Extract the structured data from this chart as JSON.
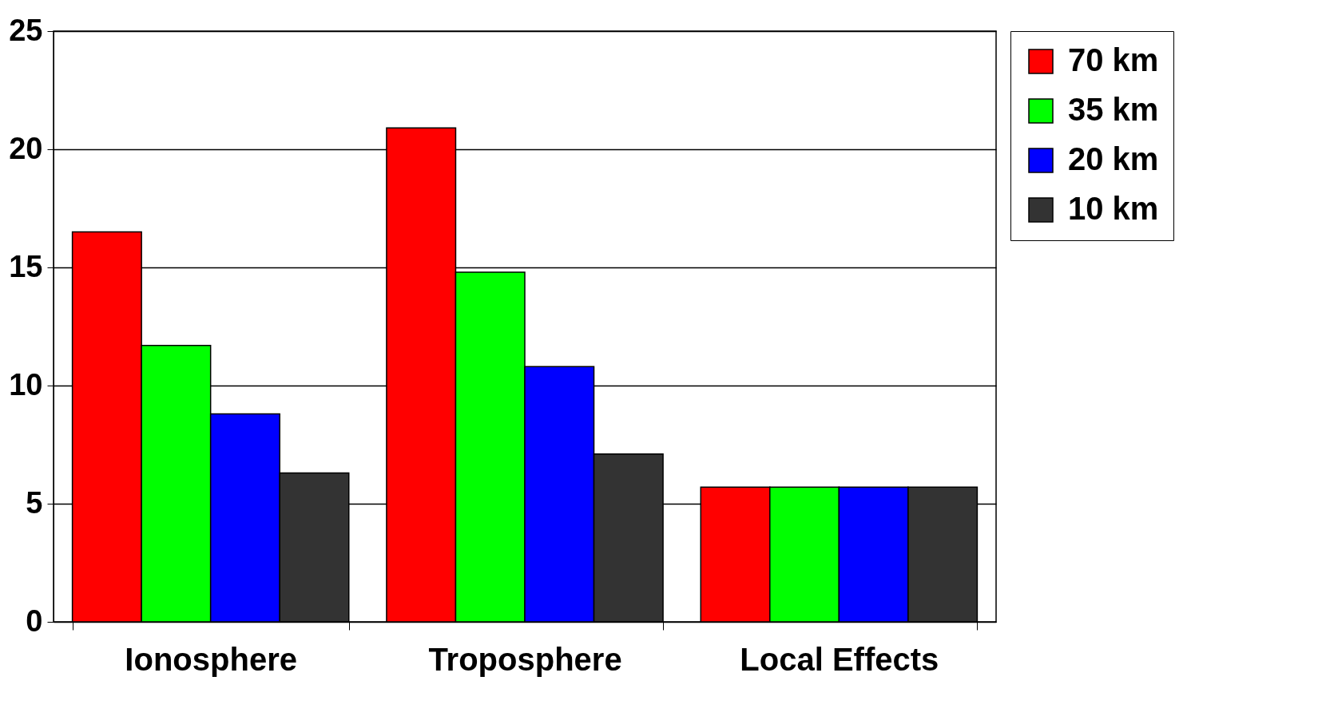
{
  "chart_data": {
    "type": "bar",
    "categories": [
      "Ionosphere",
      "Troposphere",
      "Local Effects"
    ],
    "series": [
      {
        "name": "70 km",
        "color": "#ff0000",
        "values": [
          16.5,
          20.9,
          5.7
        ]
      },
      {
        "name": "35 km",
        "color": "#00ff00",
        "values": [
          11.7,
          14.8,
          5.7
        ]
      },
      {
        "name": "20 km",
        "color": "#0000ff",
        "values": [
          8.8,
          10.8,
          5.7
        ]
      },
      {
        "name": "10 km",
        "color": "#333333",
        "values": [
          6.3,
          7.1,
          5.7
        ]
      }
    ],
    "ylim": [
      0,
      25
    ],
    "yticks": [
      0,
      5,
      10,
      15,
      20,
      25
    ],
    "grid": "y",
    "legend": "right"
  }
}
